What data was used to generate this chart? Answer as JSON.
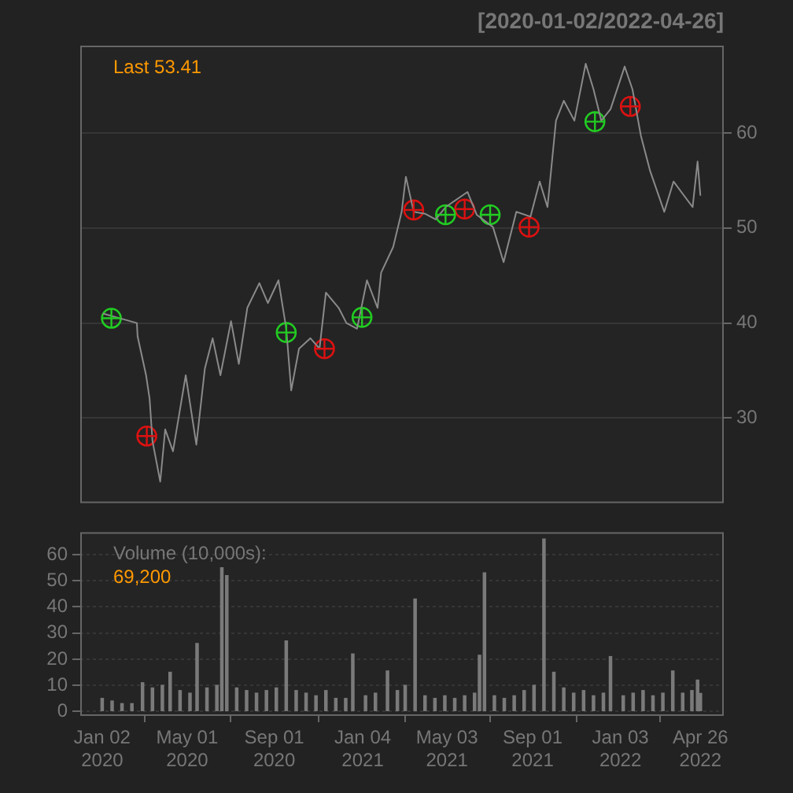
{
  "chart_data": [
    {
      "type": "line",
      "title": "[2020-01-02/2022-04-26]",
      "annotations": [
        "Last 53.41"
      ],
      "marker": "circle",
      "grid": "y",
      "tick_labels": "y",
      "xlim": [
        "2019-12-02",
        "2022-05-29"
      ],
      "ylim": [
        21.2,
        69.2
      ],
      "yticks": [
        30,
        40,
        50,
        60
      ],
      "series": [
        {
          "marker": "none",
          "color": "#8a8a8a",
          "x": [
            "2020-01-03",
            "2020-02-20",
            "2020-02-21",
            "2020-03-04",
            "2020-03-09",
            "2020-03-13",
            "2020-03-24",
            "2020-03-31",
            "2020-04-11",
            "2020-04-29",
            "2020-05-14",
            "2020-05-26",
            "2020-06-06",
            "2020-06-17",
            "2020-07-02",
            "2020-07-13",
            "2020-07-25",
            "2020-08-11",
            "2020-08-23",
            "2020-09-07",
            "2020-09-18",
            "2020-09-25",
            "2020-10-06",
            "2020-10-22",
            "2020-11-04",
            "2020-11-13",
            "2020-12-01",
            "2020-12-12",
            "2020-12-27",
            "2021-01-10",
            "2021-01-25",
            "2021-01-30",
            "2021-02-16",
            "2021-02-28",
            "2021-03-06",
            "2021-03-17",
            "2021-04-02",
            "2021-04-17",
            "2021-05-01",
            "2021-06-01",
            "2021-06-14",
            "2021-07-07",
            "2021-07-22",
            "2021-08-09",
            "2021-08-29",
            "2021-09-11",
            "2021-09-22",
            "2021-10-04",
            "2021-10-15",
            "2021-10-30",
            "2021-11-15",
            "2021-11-26",
            "2021-12-07",
            "2021-12-20",
            "2022-01-09",
            "2022-01-20",
            "2022-02-01",
            "2022-02-14",
            "2022-03-06",
            "2022-03-19",
            "2022-04-04",
            "2022-04-15",
            "2022-04-22",
            "2022-04-26"
          ],
          "values": [
            41.0,
            40.0,
            38.6,
            34.5,
            32,
            27.6,
            23.3,
            28.8,
            26.5,
            34.5,
            27.2,
            35.2,
            38.4,
            34.5,
            40.2,
            35.7,
            41.6,
            44.2,
            42.1,
            44.5,
            39.4,
            32.9,
            37.3,
            38.4,
            37.3,
            43.2,
            41.6,
            40,
            39.4,
            44.5,
            41.6,
            45.3,
            48,
            51.7,
            55.4,
            51.7,
            51.5,
            50.9,
            52.2,
            53.8,
            51.4,
            50.1,
            46.4,
            51.7,
            51.2,
            54.9,
            52.2,
            61.3,
            63.4,
            61.3,
            67.3,
            64.6,
            61.3,
            62.5,
            67,
            64.6,
            59.7,
            56,
            51.7,
            54.9,
            53.3,
            52.2,
            57,
            53.4
          ]
        },
        {
          "type": "scatter",
          "color": "#22cc22",
          "x": [
            "2020-01-15",
            "2020-09-18",
            "2021-01-03",
            "2021-05-01",
            "2021-07-03",
            "2021-11-28"
          ],
          "values": [
            40.5,
            39.0,
            40.6,
            51.4,
            51.4,
            61.2
          ]
        },
        {
          "type": "scatter",
          "color": "#dd1111",
          "x": [
            "2020-03-05",
            "2020-11-11",
            "2021-03-17",
            "2021-05-28",
            "2021-08-27",
            "2022-01-17"
          ],
          "values": [
            28.1,
            37.3,
            51.9,
            52.0,
            50.1,
            62.8
          ]
        }
      ]
    },
    {
      "type": "bar",
      "annotations": [
        "Volume (10,000s):",
        "69,200"
      ],
      "grid": "y",
      "xlim": [
        "2019-12-02",
        "2022-05-29"
      ],
      "ylim": [
        -1.1,
        68.6
      ],
      "yticks": [
        0,
        10,
        20,
        30,
        40,
        50,
        60
      ],
      "xticks": [
        {
          "value": "2020-01-02",
          "label": "Jan 02\n2020"
        },
        {
          "value": "2020-05-01",
          "label": "May 01\n2020"
        },
        {
          "value": "2020-09-01",
          "label": "Sep 01\n2020"
        },
        {
          "value": "2021-01-04",
          "label": "Jan 04\n2021"
        },
        {
          "value": "2021-05-03",
          "label": "May 03\n2021"
        },
        {
          "value": "2021-09-01",
          "label": "Sep 01\n2021"
        },
        {
          "value": "2022-01-03",
          "label": "Jan 03\n2022"
        },
        {
          "value": "2022-04-26",
          "label": "Apr 26\n2022"
        }
      ],
      "series": [
        {
          "color": "#7a7a7a",
          "x": [
            "2020-01-02",
            "2020-01-16",
            "2020-01-30",
            "2020-02-13",
            "2020-02-28",
            "2020-03-13",
            "2020-03-27",
            "2020-04-07",
            "2020-04-21",
            "2020-05-05",
            "2020-05-15",
            "2020-05-29",
            "2020-06-12",
            "2020-06-19",
            "2020-06-26",
            "2020-07-10",
            "2020-07-24",
            "2020-08-07",
            "2020-08-21",
            "2020-09-04",
            "2020-09-18",
            "2020-10-02",
            "2020-10-16",
            "2020-10-30",
            "2020-11-13",
            "2020-11-27",
            "2020-12-11",
            "2020-12-21",
            "2021-01-08",
            "2021-01-22",
            "2021-02-08",
            "2021-02-22",
            "2021-03-05",
            "2021-03-19",
            "2021-04-02",
            "2021-04-16",
            "2021-04-30",
            "2021-05-14",
            "2021-05-28",
            "2021-06-11",
            "2021-06-18",
            "2021-06-25",
            "2021-07-09",
            "2021-07-23",
            "2021-08-06",
            "2021-08-20",
            "2021-09-03",
            "2021-09-17",
            "2021-10-01",
            "2021-10-15",
            "2021-10-29",
            "2021-11-12",
            "2021-11-26",
            "2021-12-10",
            "2021-12-20",
            "2022-01-07",
            "2022-01-21",
            "2022-02-04",
            "2022-02-18",
            "2022-03-04",
            "2022-03-18",
            "2022-04-01",
            "2022-04-14",
            "2022-04-22",
            "2022-04-26"
          ],
          "values": [
            5,
            4,
            3,
            3,
            11,
            9,
            10,
            15,
            8,
            7,
            26,
            9,
            10,
            55,
            52,
            9,
            8,
            7,
            8,
            9,
            27,
            8,
            7,
            6,
            8,
            5,
            5,
            22,
            6,
            7,
            15.5,
            8,
            10,
            43,
            6,
            5,
            6,
            5,
            6,
            7,
            21.5,
            53,
            6,
            5,
            6,
            8,
            10,
            66,
            15,
            9,
            7,
            8,
            6,
            7,
            21,
            6,
            7,
            8,
            6,
            7,
            15.5,
            7,
            8,
            12,
            6.9
          ]
        }
      ]
    }
  ]
}
